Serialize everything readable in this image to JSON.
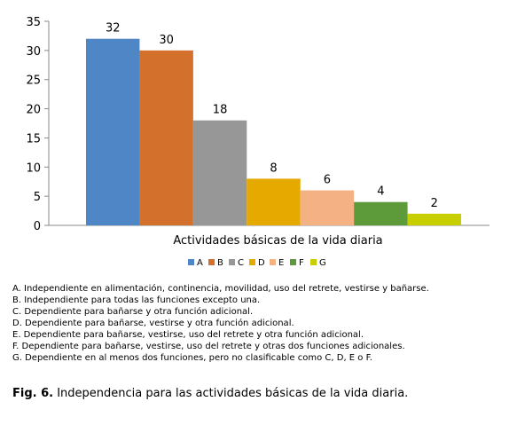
{
  "chart_data": {
    "type": "bar",
    "categories": [
      "A",
      "B",
      "C",
      "D",
      "E",
      "F",
      "G"
    ],
    "values": [
      32,
      30,
      18,
      8,
      6,
      4,
      2
    ],
    "colors": [
      "#4f86c6",
      "#d3702b",
      "#979797",
      "#e5a900",
      "#f4b183",
      "#5d9a3a",
      "#c8cf00"
    ],
    "title": "",
    "xlabel": "Actividades básicas de la vida diaria",
    "ylabel": "",
    "ylim": [
      0,
      35
    ],
    "yticks": [
      "0",
      "5",
      "10",
      "15",
      "20",
      "25",
      "30",
      "35"
    ],
    "grid": false,
    "legend": "bottom",
    "data_labels": [
      "32",
      "30",
      "18",
      "8",
      "6",
      "4",
      "2"
    ]
  },
  "notes": [
    "A. Independiente en alimentación, continencia, movilidad, uso del retrete, vestirse y bañarse.",
    "B. Independiente para todas las funciones excepto una.",
    "C. Dependiente para bañarse y otra función adicional.",
    "D. Dependiente para bañarse, vestirse y otra función adicional.",
    "E. Dependiente para bañarse, vestirse, uso del retrete y otra función adicional.",
    "F. Dependiente para bañarse, vestirse, uso del retrete y otras dos funciones adicionales.",
    "G. Dependiente en al menos dos funciones, pero no clasificable como C, D, E o F."
  ],
  "caption": {
    "label": "Fig. 6.",
    "text": " Independencia para las actividades básicas de la vida diaria."
  }
}
